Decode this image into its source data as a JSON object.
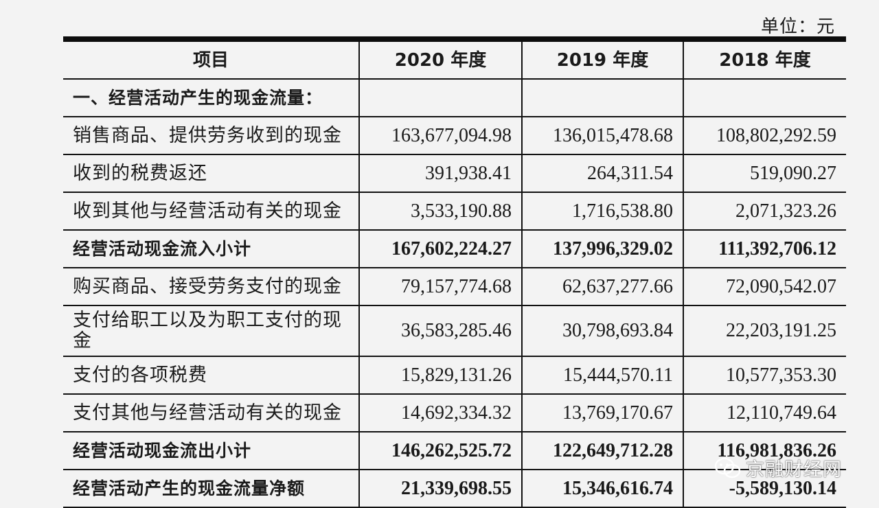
{
  "unit_label": "单位：元",
  "header": [
    "项目",
    "2020 年度",
    "2019 年度",
    "2018 年度"
  ],
  "rows": [
    {
      "label": "一、经营活动产生的现金流量：",
      "v2020": "",
      "v2019": "",
      "v2018": "",
      "style": "bold"
    },
    {
      "label": "销售商品、提供劳务收到的现金",
      "v2020": "163,677,094.98",
      "v2019": "136,015,478.68",
      "v2018": "108,802,292.59",
      "style": "normal"
    },
    {
      "label": "收到的税费返还",
      "v2020": "391,938.41",
      "v2019": "264,311.54",
      "v2018": "519,090.27",
      "style": "normal"
    },
    {
      "label": "收到其他与经营活动有关的现金",
      "v2020": "3,533,190.88",
      "v2019": "1,716,538.80",
      "v2018": "2,071,323.26",
      "style": "normal"
    },
    {
      "label": "经营活动现金流入小计",
      "v2020": "167,602,224.27",
      "v2019": "137,996,329.02",
      "v2018": "111,392,706.12",
      "style": "bold"
    },
    {
      "label": "购买商品、接受劳务支付的现金",
      "v2020": "79,157,774.68",
      "v2019": "62,637,277.66",
      "v2018": "72,090,542.07",
      "style": "normal"
    },
    {
      "label": "支付给职工以及为职工支付的现金",
      "v2020": "36,583,285.46",
      "v2019": "30,798,693.84",
      "v2018": "22,203,191.25",
      "style": "tall"
    },
    {
      "label": "支付的各项税费",
      "v2020": "15,829,131.26",
      "v2019": "15,444,570.11",
      "v2018": "10,577,353.30",
      "style": "normal"
    },
    {
      "label": "支付其他与经营活动有关的现金",
      "v2020": "14,692,334.32",
      "v2019": "13,769,170.67",
      "v2018": "12,110,749.64",
      "style": "normal"
    },
    {
      "label": "经营活动现金流出小计",
      "v2020": "146,262,525.72",
      "v2019": "122,649,712.28",
      "v2018": "116,981,836.26",
      "style": "bold"
    },
    {
      "label": "经营活动产生的现金流量净额",
      "v2020": "21,339,698.55",
      "v2019": "15,346,616.74",
      "v2018": "-5,589,130.14",
      "style": "bold"
    }
  ],
  "watermark": {
    "text": "京融财经网",
    "icon": "wechat-icon"
  }
}
